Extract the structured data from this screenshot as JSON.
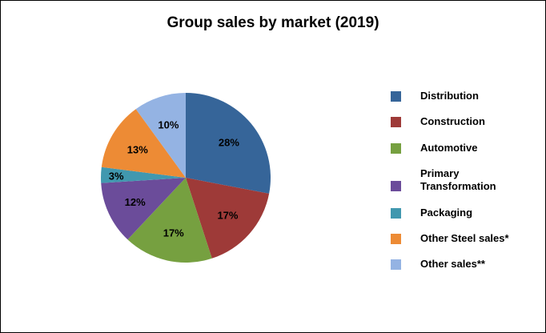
{
  "title": "Group sales by market (2019)",
  "legend": [
    {
      "label": "Distribution",
      "color": "#366599"
    },
    {
      "label": "Construction",
      "color": "#9E3A38"
    },
    {
      "label": "Automotive",
      "color": "#76A040"
    },
    {
      "label": "Primary\nTransformation",
      "color": "#6B4C9A"
    },
    {
      "label": "Packaging",
      "color": "#4198AF"
    },
    {
      "label": "Other Steel sales*",
      "color": "#ED8B35"
    },
    {
      "label": "Other sales**",
      "color": "#94B3E3"
    }
  ],
  "chart_data": {
    "type": "pie",
    "title": "Group sales by market (2019)",
    "categories": [
      "Distribution",
      "Construction",
      "Automotive",
      "Primary Transformation",
      "Packaging",
      "Other Steel sales*",
      "Other sales**"
    ],
    "values": [
      28,
      17,
      17,
      12,
      3,
      13,
      10
    ],
    "labels": [
      "28%",
      "17%",
      "17%",
      "12%",
      "3%",
      "13%",
      "10%"
    ],
    "colors": [
      "#366599",
      "#9E3A38",
      "#76A040",
      "#6B4C9A",
      "#4198AF",
      "#ED8B35",
      "#94B3E3"
    ],
    "legend_position": "right",
    "start_angle": "12 o'clock, clockwise"
  }
}
